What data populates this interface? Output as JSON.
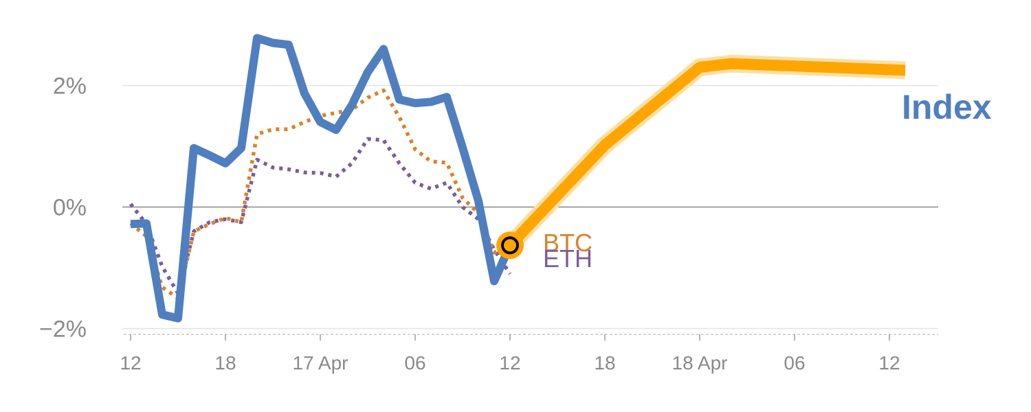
{
  "chart_data": {
    "type": "line",
    "title": "",
    "xlabel": "",
    "ylabel": "",
    "y_unit": "%",
    "ylim": [
      -2.0,
      2.4
    ],
    "y_ticks": [
      {
        "value": 2,
        "label": "2%"
      },
      {
        "value": 0,
        "label": "0%"
      },
      {
        "value": -2,
        "label": "−2%"
      }
    ],
    "x_tick_labels": [
      "12",
      "18",
      "17 Apr",
      "06",
      "12",
      "18",
      "18 Apr",
      "06",
      "12"
    ],
    "grid": "horizontal",
    "legend": "none",
    "series": [
      {
        "name": "Index",
        "color": "#4f7fbf",
        "style": "solid",
        "points": [
          [
            0,
            -0.28
          ],
          [
            1,
            -0.27
          ],
          [
            2,
            -1.77
          ],
          [
            3,
            -1.83
          ],
          [
            4,
            0.97
          ],
          [
            5,
            0.85
          ],
          [
            6,
            0.72
          ],
          [
            7,
            0.97
          ],
          [
            8,
            2.78
          ],
          [
            9,
            2.7
          ],
          [
            10,
            2.67
          ],
          [
            11,
            1.87
          ],
          [
            12,
            1.4
          ],
          [
            13,
            1.27
          ],
          [
            14,
            1.68
          ],
          [
            15,
            2.22
          ],
          [
            16,
            2.6
          ],
          [
            17,
            1.77
          ],
          [
            18,
            1.71
          ],
          [
            19,
            1.73
          ],
          [
            20,
            1.81
          ],
          [
            21,
            0.98
          ],
          [
            22,
            0.1
          ],
          [
            23,
            -1.22
          ],
          [
            24,
            -0.63
          ]
        ]
      },
      {
        "name": "BTC",
        "color": "#d9822b",
        "style": "dotted",
        "points": [
          [
            0,
            -0.27
          ],
          [
            1,
            -0.48
          ],
          [
            2,
            -1.32
          ],
          [
            3,
            -1.5
          ],
          [
            4,
            -0.4
          ],
          [
            5,
            -0.28
          ],
          [
            6,
            -0.18
          ],
          [
            7,
            -0.25
          ],
          [
            8,
            1.2
          ],
          [
            9,
            1.28
          ],
          [
            10,
            1.28
          ],
          [
            11,
            1.4
          ],
          [
            12,
            1.5
          ],
          [
            13,
            1.55
          ],
          [
            14,
            1.6
          ],
          [
            15,
            1.8
          ],
          [
            16,
            1.92
          ],
          [
            17,
            1.48
          ],
          [
            18,
            0.95
          ],
          [
            19,
            0.75
          ],
          [
            20,
            0.73
          ],
          [
            21,
            0.15
          ],
          [
            22,
            -0.1
          ],
          [
            23,
            -0.75
          ],
          [
            24,
            -0.63
          ]
        ]
      },
      {
        "name": "ETH",
        "color": "#7a5c9e",
        "style": "dotted",
        "points": [
          [
            0,
            0.05
          ],
          [
            1,
            -0.28
          ],
          [
            2,
            -0.98
          ],
          [
            3,
            -1.42
          ],
          [
            4,
            -0.4
          ],
          [
            5,
            -0.25
          ],
          [
            6,
            -0.2
          ],
          [
            7,
            -0.25
          ],
          [
            8,
            0.78
          ],
          [
            9,
            0.65
          ],
          [
            10,
            0.62
          ],
          [
            11,
            0.57
          ],
          [
            12,
            0.56
          ],
          [
            13,
            0.5
          ],
          [
            14,
            0.72
          ],
          [
            15,
            1.12
          ],
          [
            16,
            1.1
          ],
          [
            17,
            0.72
          ],
          [
            18,
            0.4
          ],
          [
            19,
            0.3
          ],
          [
            20,
            0.4
          ],
          [
            21,
            0.0
          ],
          [
            22,
            -0.2
          ],
          [
            23,
            -0.7
          ],
          [
            24,
            -1.1
          ]
        ]
      },
      {
        "name": "Index",
        "color": "#ffa500",
        "style": "projection",
        "points": [
          [
            24,
            -0.63
          ],
          [
            30,
            1.02
          ],
          [
            36,
            2.3
          ],
          [
            38,
            2.36
          ],
          [
            49,
            2.25
          ]
        ]
      }
    ],
    "highlight_point": {
      "x": 24,
      "y": -0.63
    }
  }
}
